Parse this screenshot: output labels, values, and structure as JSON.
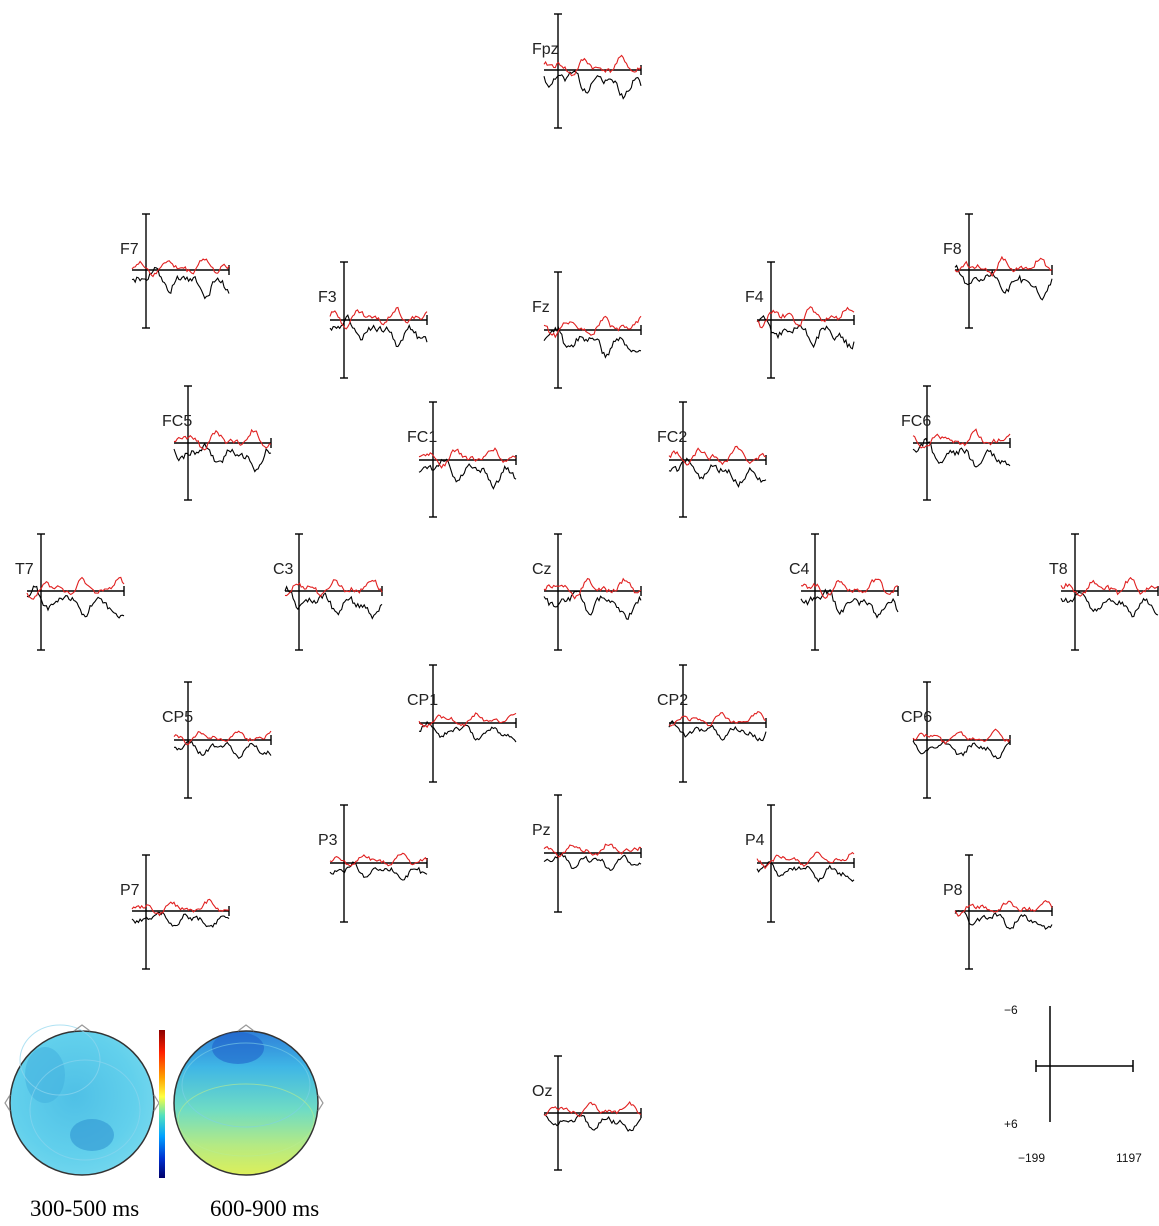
{
  "chart_data": {
    "type": "line",
    "series": [
      {
        "color": "#000000"
      },
      {
        "color": "#e02020"
      }
    ],
    "scale": {
      "x_min_label": "−199",
      "x_max_label": "1197",
      "y_top_label": "−6",
      "y_bottom_label": "+6",
      "xlim": [
        -199,
        1197
      ],
      "ylim": [
        -6,
        6
      ],
      "y_inverted": true
    },
    "electrodes": [
      {
        "label": "Fpz"
      },
      {
        "label": "F7"
      },
      {
        "label": "F3"
      },
      {
        "label": "Fz"
      },
      {
        "label": "F4"
      },
      {
        "label": "F8"
      },
      {
        "label": "FC5"
      },
      {
        "label": "FC1"
      },
      {
        "label": "FC2"
      },
      {
        "label": "FC6"
      },
      {
        "label": "T7"
      },
      {
        "label": "C3"
      },
      {
        "label": "Cz"
      },
      {
        "label": "C4"
      },
      {
        "label": "T8"
      },
      {
        "label": "CP5"
      },
      {
        "label": "CP1"
      },
      {
        "label": "CP2"
      },
      {
        "label": "CP6"
      },
      {
        "label": "P7"
      },
      {
        "label": "P3"
      },
      {
        "label": "Pz"
      },
      {
        "label": "P4"
      },
      {
        "label": "P8"
      },
      {
        "label": "Oz"
      }
    ],
    "topomaps": [
      {
        "caption": "300-500 ms",
        "dominant_color": "#56c8e8"
      },
      {
        "caption": "600-900 ms",
        "dominant_color": "#9ee0a0"
      }
    ],
    "colorbar": [
      "#8b0000",
      "#ff2000",
      "#ffa000",
      "#ffff40",
      "#50e0c0",
      "#00a0ff",
      "#0030d0",
      "#00006a"
    ]
  }
}
